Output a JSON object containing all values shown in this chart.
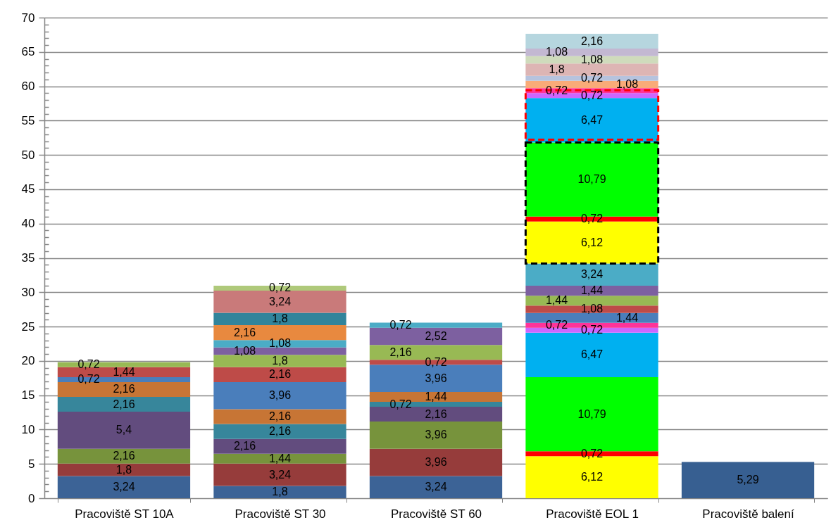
{
  "chart_data": {
    "type": "bar",
    "stacked": true,
    "grid": "y",
    "categories": [
      "Pracoviště ST 10A",
      "Pracoviště ST 30",
      "Pracoviště ST 60",
      "Pracoviště EOL 1",
      "Pracoviště balení"
    ],
    "ylim": [
      0,
      70
    ],
    "yticks": [
      0,
      {
        "value": 1,
        "label": null
      },
      {
        "value": 2,
        "label": null
      },
      {
        "value": 3,
        "label": null
      },
      {
        "value": 4,
        "label": null
      },
      5,
      {
        "value": 6,
        "label": null
      },
      {
        "value": 7,
        "label": null
      },
      {
        "value": 8,
        "label": null
      },
      {
        "value": 9,
        "label": null
      },
      10,
      {
        "value": 11,
        "label": null
      },
      {
        "value": 12,
        "label": null
      },
      {
        "value": 13,
        "label": null
      },
      {
        "value": 14,
        "label": null
      },
      15,
      {
        "value": 16,
        "label": null
      },
      {
        "value": 17,
        "label": null
      },
      {
        "value": 18,
        "label": null
      },
      {
        "value": 19,
        "label": null
      },
      20,
      {
        "value": 21,
        "label": null
      },
      {
        "value": 22,
        "label": null
      },
      {
        "value": 23,
        "label": null
      },
      {
        "value": 24,
        "label": null
      },
      25,
      {
        "value": 26,
        "label": null
      },
      {
        "value": 27,
        "label": null
      },
      {
        "value": 28,
        "label": null
      },
      {
        "value": 29,
        "label": null
      },
      30,
      {
        "value": 31,
        "label": null
      },
      {
        "value": 32,
        "label": null
      },
      {
        "value": 33,
        "label": null
      },
      {
        "value": 34,
        "label": null
      },
      35,
      {
        "value": 36,
        "label": null
      },
      {
        "value": 37,
        "label": null
      },
      {
        "value": 38,
        "label": null
      },
      {
        "value": 39,
        "label": null
      },
      40,
      {
        "value": 41,
        "label": null
      },
      {
        "value": 42,
        "label": null
      },
      {
        "value": 43,
        "label": null
      },
      {
        "value": 44,
        "label": null
      },
      45,
      {
        "value": 46,
        "label": null
      },
      {
        "value": 47,
        "label": null
      },
      {
        "value": 48,
        "label": null
      },
      {
        "value": 49,
        "label": null
      },
      50,
      {
        "value": 51,
        "label": null
      },
      {
        "value": 52,
        "label": null
      },
      {
        "value": 53,
        "label": null
      },
      {
        "value": 54,
        "label": null
      },
      55,
      {
        "value": 56,
        "label": null
      },
      {
        "value": 57,
        "label": null
      },
      {
        "value": 58,
        "label": null
      },
      {
        "value": 59,
        "label": null
      },
      60,
      {
        "value": 61,
        "label": null
      },
      {
        "value": 62,
        "label": null
      },
      {
        "value": 63,
        "label": null
      },
      {
        "value": 64,
        "label": null
      },
      65,
      {
        "value": 66,
        "label": null
      },
      {
        "value": 67,
        "label": null
      },
      {
        "value": 68,
        "label": null
      },
      {
        "value": 69,
        "label": null
      },
      70
    ],
    "series": [
      {
        "values": [
          3.24,
          1.8,
          3.24,
          6.12,
          5.29
        ],
        "colors": [
          "#3c6396",
          "#3c6396",
          "#3c6396",
          "#ffff00",
          "#375f91"
        ],
        "value_labels": [
          "3,24",
          "1,8",
          "3,24",
          "6,12",
          "5,29"
        ]
      },
      {
        "values": [
          1.8,
          3.24,
          3.96,
          0.72,
          null
        ],
        "colors": [
          "#963c3b",
          "#963c3b",
          "#963c3b",
          "#ff0000",
          null
        ],
        "value_labels": [
          "1,8",
          "3,24",
          "3,96",
          "0,72",
          null
        ]
      },
      {
        "values": [
          2.16,
          1.44,
          3.96,
          10.79,
          null
        ],
        "colors": [
          "#77933c",
          "#77933c",
          "#77933c",
          "#00ff00",
          null
        ],
        "value_labels": [
          "2,16",
          "1,44",
          "3,96",
          "10,79",
          null
        ]
      },
      {
        "values": [
          5.4,
          2.16,
          2.16,
          6.47,
          null
        ],
        "colors": [
          "#624c7e",
          "#624c7e",
          "#624c7e",
          "#00b0f0",
          null
        ],
        "value_labels": [
          "5,4",
          "2,16",
          "2,16",
          "6,47",
          null
        ]
      },
      {
        "values": [
          2.16,
          2.16,
          0.72,
          0.72,
          null
        ],
        "colors": [
          "#37869b",
          "#37869b",
          "#37869b",
          "#cc66ff",
          null
        ],
        "value_labels": [
          "2,16",
          "2,16",
          "0,72",
          "0,72",
          null
        ]
      },
      {
        "values": [
          2.16,
          2.16,
          1.44,
          0.72,
          null
        ],
        "colors": [
          "#c77535",
          "#c77535",
          "#c77535",
          "#ff3399",
          null
        ],
        "value_labels": [
          "2,16",
          "2,16",
          "1,44",
          "0,72",
          null
        ]
      },
      {
        "values": [
          0.72,
          3.96,
          3.96,
          1.44,
          null
        ],
        "colors": [
          "#4a7ebb",
          "#4a7ebb",
          "#4a7ebb",
          "#4a7ebb",
          null
        ],
        "value_labels": [
          "0,72",
          "3,96",
          "3,96",
          "1,44",
          null
        ]
      },
      {
        "values": [
          1.44,
          2.16,
          0.72,
          1.08,
          null
        ],
        "colors": [
          "#be4b48",
          "#be4b48",
          "#be4b48",
          "#be4b48",
          null
        ],
        "value_labels": [
          "1,44",
          "2,16",
          "0,72",
          "1,08",
          null
        ]
      },
      {
        "values": [
          0.72,
          1.8,
          2.16,
          1.44,
          null
        ],
        "colors": [
          "#98b954",
          "#98b954",
          "#98b954",
          "#98b954",
          null
        ],
        "value_labels": [
          "0,72",
          "1,8",
          "2,16",
          "1,44",
          null
        ]
      },
      {
        "values": [
          null,
          1.08,
          2.52,
          1.44,
          null
        ],
        "colors": [
          null,
          "#7d60a0",
          "#7d60a0",
          "#7d60a0",
          null
        ],
        "value_labels": [
          null,
          "1,08",
          "2,52",
          "1,44",
          null
        ]
      },
      {
        "values": [
          null,
          1.08,
          0.72,
          3.24,
          null
        ],
        "colors": [
          null,
          "#4bacc6",
          "#4bacc6",
          "#4bacc6",
          null
        ],
        "value_labels": [
          null,
          "1,08",
          "0,72",
          "3,24",
          null
        ]
      },
      {
        "values": [
          null,
          2.16,
          null,
          6.12,
          null
        ],
        "colors": [
          null,
          "#e8893f",
          null,
          "#ffff00",
          null
        ],
        "value_labels": [
          null,
          "2,16",
          null,
          "6,12",
          null
        ]
      },
      {
        "values": [
          null,
          1.8,
          null,
          0.72,
          null
        ],
        "colors": [
          null,
          "#31849b",
          null,
          "#ff0000",
          null
        ],
        "value_labels": [
          null,
          "1,8",
          null,
          "0,72",
          null
        ]
      },
      {
        "values": [
          null,
          3.24,
          null,
          10.79,
          null
        ],
        "colors": [
          null,
          "#c97a7a",
          null,
          "#00ff00",
          null
        ],
        "value_labels": [
          null,
          "3,24",
          null,
          "10,79",
          null
        ]
      },
      {
        "values": [
          null,
          0.72,
          null,
          6.47,
          null
        ],
        "colors": [
          null,
          "#afc97a",
          null,
          "#00b0f0",
          null
        ],
        "value_labels": [
          null,
          "0,72",
          null,
          "6,47",
          null
        ]
      },
      {
        "values": [
          null,
          null,
          null,
          0.72,
          null
        ],
        "colors": [
          null,
          null,
          null,
          "#cc66ff",
          null
        ],
        "value_labels": [
          null,
          null,
          null,
          "0,72",
          null
        ]
      },
      {
        "values": [
          null,
          null,
          null,
          0.72,
          null
        ],
        "colors": [
          null,
          null,
          null,
          "#ff3399",
          null
        ],
        "value_labels": [
          null,
          null,
          null,
          "0,72",
          null
        ]
      },
      {
        "values": [
          null,
          null,
          null,
          1.08,
          null
        ],
        "colors": [
          null,
          null,
          null,
          "#f9ab78",
          null
        ],
        "value_labels": [
          null,
          null,
          null,
          "1,08",
          null
        ]
      },
      {
        "values": [
          null,
          null,
          null,
          0.72,
          null
        ],
        "colors": [
          null,
          null,
          null,
          "#b6c3de",
          null
        ],
        "value_labels": [
          null,
          null,
          null,
          "0,72",
          null
        ]
      },
      {
        "values": [
          null,
          null,
          null,
          1.8,
          null
        ],
        "colors": [
          null,
          null,
          null,
          "#ddb5b4",
          null
        ],
        "value_labels": [
          null,
          null,
          null,
          "1,8",
          null
        ]
      },
      {
        "values": [
          null,
          null,
          null,
          1.08,
          null
        ],
        "colors": [
          null,
          null,
          null,
          "#cfdbbc",
          null
        ],
        "value_labels": [
          null,
          null,
          null,
          "1,08",
          null
        ]
      },
      {
        "values": [
          null,
          null,
          null,
          1.08,
          null
        ],
        "colors": [
          null,
          null,
          null,
          "#c3b8d2",
          null
        ],
        "value_labels": [
          null,
          null,
          null,
          "1,08",
          null
        ]
      },
      {
        "values": [
          null,
          null,
          null,
          2.16,
          null
        ],
        "colors": [
          null,
          null,
          null,
          "#b6d6df",
          null
        ],
        "value_labels": [
          null,
          null,
          null,
          "2,16",
          null
        ]
      }
    ]
  }
}
